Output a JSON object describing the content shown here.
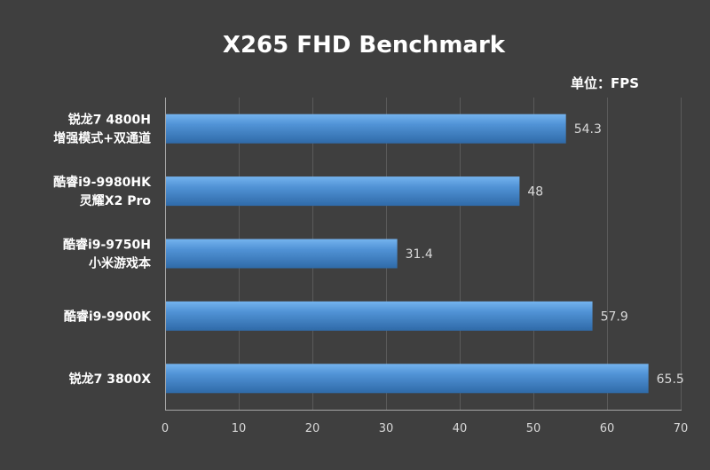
{
  "chart_data": {
    "type": "bar",
    "orientation": "horizontal",
    "title": "X265 FHD Benchmark",
    "unit_label": "单位：FPS",
    "categories": [
      [
        "锐龙7 4800H",
        "增强模式+双通道"
      ],
      [
        "酷睿i9-9980HK",
        "灵耀X2 Pro"
      ],
      [
        "酷睿i9-9750H",
        "小米游戏本"
      ],
      [
        "酷睿i9-9900K"
      ],
      [
        "锐龙7 3800X"
      ]
    ],
    "values": [
      54.3,
      48,
      31.4,
      57.9,
      65.5
    ],
    "value_labels": [
      "54.3",
      "48",
      "31.4",
      "57.9",
      "65.5"
    ],
    "xlim": [
      0,
      70
    ],
    "xticks": [
      0,
      10,
      20,
      30,
      40,
      50,
      60,
      70
    ],
    "grid": "vertical",
    "bar_color": "#3f7fc2",
    "bar_highlight": "#74b3ee",
    "background": "#3f3f3f"
  }
}
